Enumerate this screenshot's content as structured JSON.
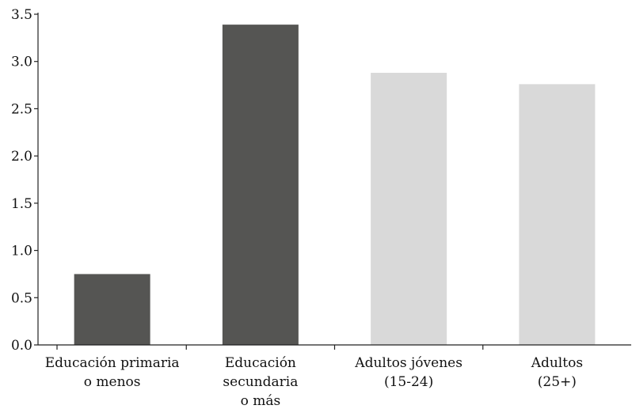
{
  "chart_data": {
    "type": "bar",
    "categories": [
      [
        "Educación primaria",
        "o menos"
      ],
      [
        "Educación",
        "secundaria",
        "o más"
      ],
      [
        "Adultos jóvenes",
        "(15-24)"
      ],
      [
        "Adultos",
        "(25+)"
      ]
    ],
    "values": [
      0.75,
      3.39,
      2.88,
      2.76
    ],
    "bar_colors": [
      "#555553",
      "#555553",
      "#d9d9d9",
      "#d9d9d9"
    ],
    "title": "",
    "xlabel": "",
    "ylabel": "",
    "ylim": [
      0,
      3.5
    ],
    "yticks": [
      "0.0",
      "0.5",
      "1.0",
      "1.5",
      "2.0",
      "2.5",
      "3.0",
      "3.5"
    ],
    "grid": false
  }
}
